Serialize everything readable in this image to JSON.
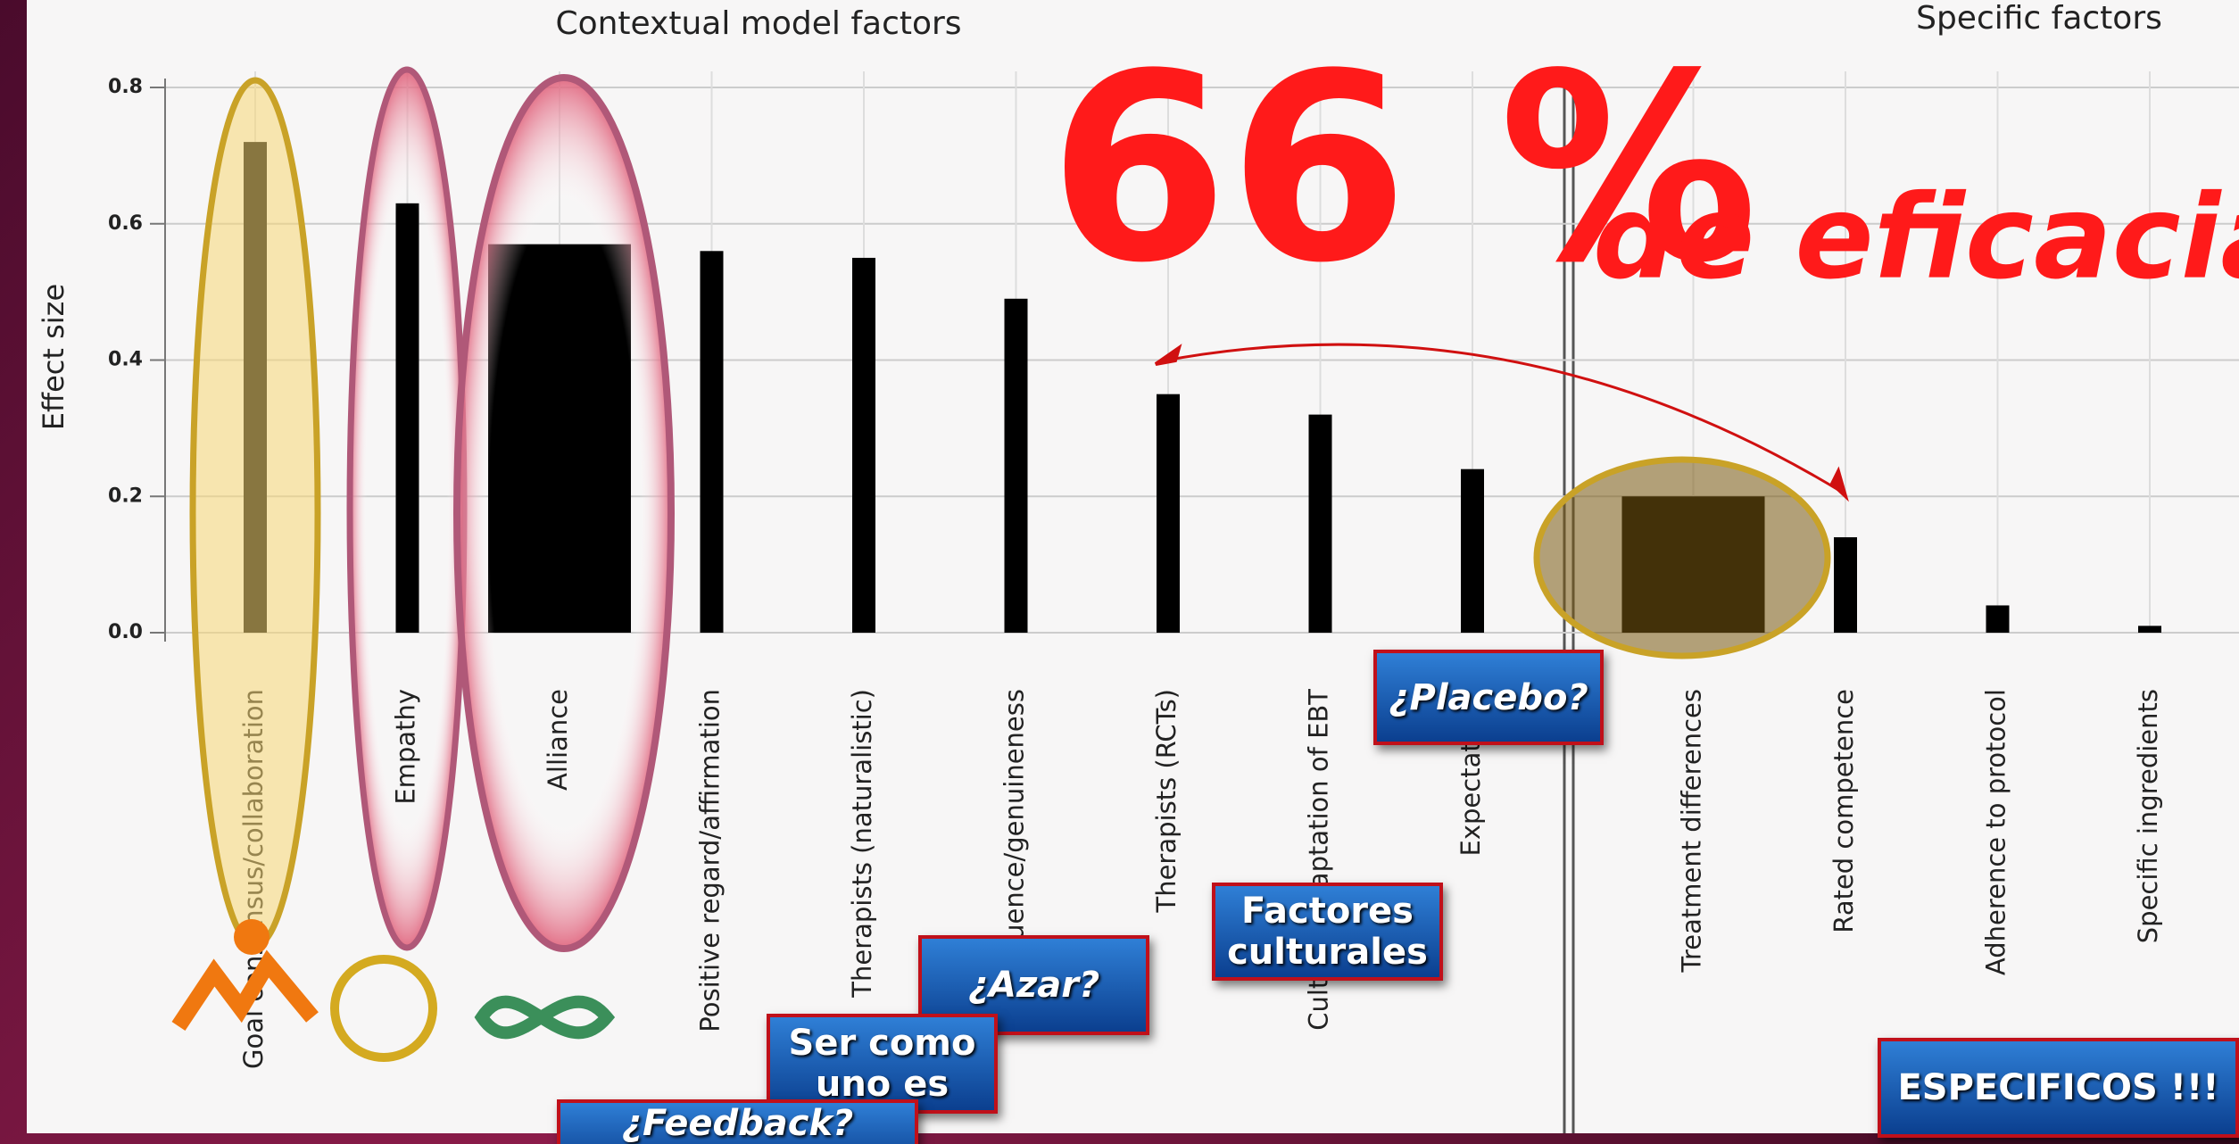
{
  "chart_data": {
    "type": "bar",
    "headings": [
      "Contextual model factors",
      "Specific factors"
    ],
    "y_label": "Effect size",
    "categories": [
      "Goal consensus/collaboration",
      "Empathy",
      "Alliance",
      "Positive regard/affirmation",
      "Therapists (naturalistic)",
      "Congruence/genuineness",
      "Therapists (RCTs)",
      "Cultural adaptation of EBT",
      "Expectations",
      "Treatment differences",
      "Rated competence",
      "Adherence to protocol",
      "Specific ingredients"
    ],
    "values": [
      0.72,
      0.63,
      0.57,
      0.56,
      0.55,
      0.49,
      0.35,
      0.32,
      0.24,
      0.2,
      0.14,
      0.04,
      0.01
    ],
    "color": "#000000",
    "ylim": [
      0,
      0.8
    ],
    "yticks": [
      {
        "value": 0,
        "label": "0.0"
      },
      0.2,
      0.4,
      0.6,
      0.8
    ],
    "grid": true,
    "headline": "66 %",
    "headline_suffix": "de eficacia",
    "callouts": [
      "¿Placebo?",
      "Factores culturales",
      "¿Azar?",
      "Ser como uno es",
      "¿Feedback?",
      "ESPECIFICOS !!!"
    ]
  }
}
